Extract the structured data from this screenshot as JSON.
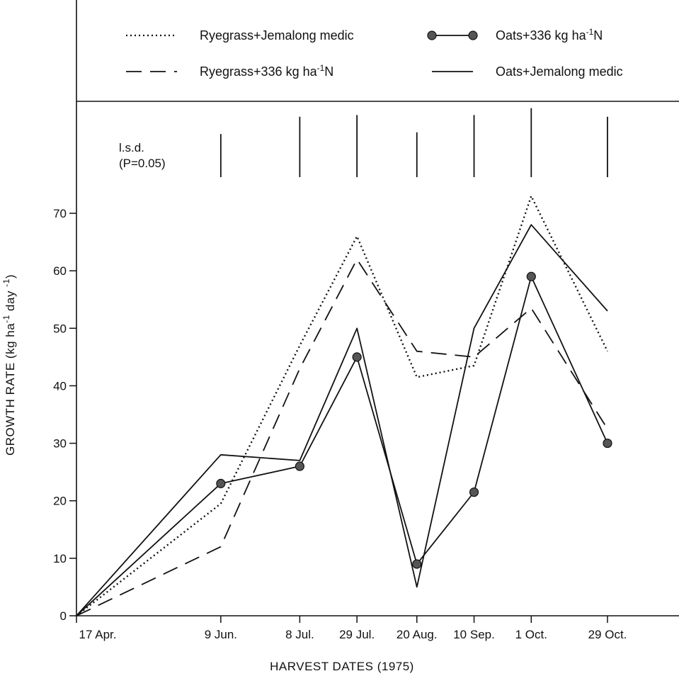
{
  "chart_data": {
    "type": "line",
    "title": "",
    "xlabel": "HARVEST DATES (1975)",
    "ylabel_parts": {
      "a": "GROWTH RATE (kg ha",
      "b": "-1",
      "c": " day ",
      "d": "-1",
      "e": ")"
    },
    "categories": [
      "17 Apr.",
      "9 Jun.",
      "8 Jul.",
      "29 Jul.",
      "20 Aug.",
      "10 Sep.",
      "1 Oct.",
      "29 Oct."
    ],
    "x_days": [
      0,
      53,
      82,
      103,
      125,
      146,
      167,
      195
    ],
    "yticks": [
      "0",
      "10",
      "20",
      "30",
      "40",
      "50",
      "60",
      "70"
    ],
    "ylim": [
      0,
      80
    ],
    "grid": false,
    "series": [
      {
        "name_parts": {
          "a": "Ryegrass+Jemalong medic"
        },
        "style": "dotted",
        "values": [
          0,
          19.5,
          47,
          66,
          41.5,
          43.5,
          73,
          46
        ]
      },
      {
        "name_parts": {
          "a": "Ryegrass+336 kg ha",
          "b": "-1",
          "c": "N"
        },
        "style": "dashed",
        "values": [
          0,
          12,
          43,
          62,
          46,
          45,
          53.5,
          32.5
        ]
      },
      {
        "name_parts": {
          "a": "Oats+336 kg ha",
          "b": "-1",
          "c": "N"
        },
        "style": "solid-markers",
        "values": [
          0,
          23,
          26,
          45,
          9,
          21.5,
          59,
          30
        ]
      },
      {
        "name_parts": {
          "a": "Oats+Jemalong medic"
        },
        "style": "solid",
        "values": [
          0,
          28,
          27,
          50,
          5,
          50,
          68,
          53
        ]
      }
    ],
    "lsd": {
      "label_line1": "l.s.d.",
      "label_line2": "(P=0.05)",
      "values": [
        null,
        7.5,
        10.5,
        10.8,
        7.8,
        10.8,
        12.0,
        10.5
      ]
    },
    "legend_position": "top"
  }
}
